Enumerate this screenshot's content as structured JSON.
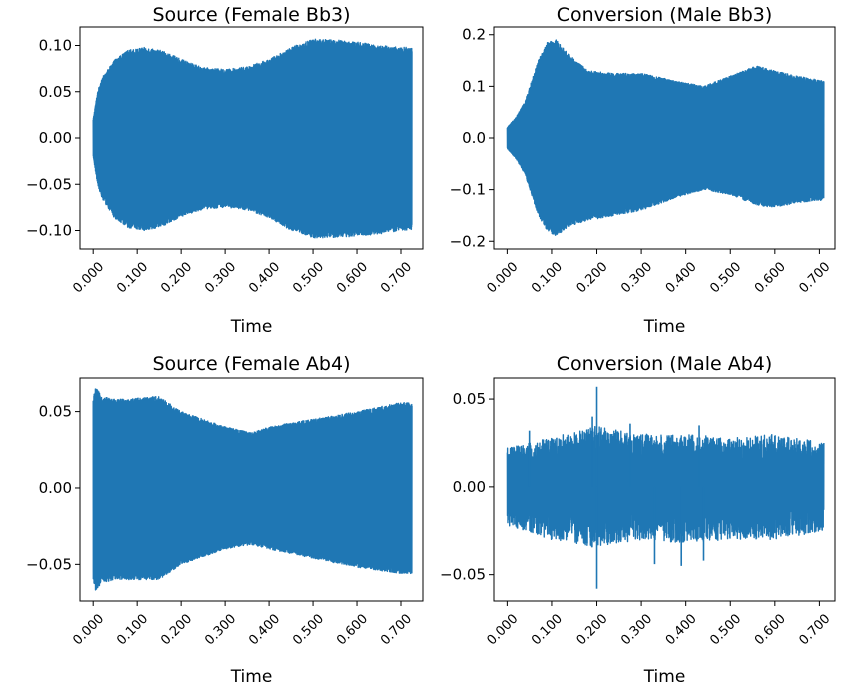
{
  "chart_data": [
    {
      "type": "line",
      "title": "Source (Female Bb3)",
      "xlabel": "Time",
      "ylabel": "",
      "xlim": [
        -0.03,
        0.75
      ],
      "ylim": [
        -0.12,
        0.12
      ],
      "xticks": [
        "0.000",
        "0.100",
        "0.200",
        "0.300",
        "0.400",
        "0.500",
        "0.600",
        "0.700"
      ],
      "xtick_values": [
        0.0,
        0.1,
        0.2,
        0.3,
        0.4,
        0.5,
        0.6,
        0.7
      ],
      "yticks": [
        "0.10",
        "0.05",
        "0.00",
        "−0.05",
        "−0.10"
      ],
      "ytick_values": [
        0.1,
        0.05,
        0.0,
        -0.05,
        -0.1
      ],
      "grid": false,
      "series": [
        {
          "color": "#1f77b4",
          "duration": 0.725,
          "envelope_upper": {
            "t": [
              0.0,
              0.01,
              0.02,
              0.05,
              0.08,
              0.12,
              0.16,
              0.2,
              0.25,
              0.3,
              0.35,
              0.4,
              0.45,
              0.5,
              0.55,
              0.6,
              0.65,
              0.7,
              0.725
            ],
            "v": [
              0.02,
              0.05,
              0.065,
              0.085,
              0.095,
              0.098,
              0.094,
              0.085,
              0.076,
              0.074,
              0.077,
              0.085,
              0.098,
              0.107,
              0.106,
              0.104,
              0.1,
              0.098,
              0.098
            ]
          },
          "envelope_lower": {
            "t": [
              0.0,
              0.01,
              0.02,
              0.05,
              0.08,
              0.12,
              0.16,
              0.2,
              0.25,
              0.3,
              0.35,
              0.4,
              0.45,
              0.5,
              0.55,
              0.6,
              0.65,
              0.7,
              0.725
            ],
            "v": [
              -0.02,
              -0.05,
              -0.065,
              -0.088,
              -0.097,
              -0.1,
              -0.095,
              -0.085,
              -0.077,
              -0.075,
              -0.078,
              -0.086,
              -0.1,
              -0.108,
              -0.108,
              -0.106,
              -0.104,
              -0.1,
              -0.1
            ]
          }
        }
      ]
    },
    {
      "type": "line",
      "title": "Conversion (Male Bb3)",
      "xlabel": "Time",
      "ylabel": "",
      "xlim": [
        -0.03,
        0.735
      ],
      "ylim": [
        -0.215,
        0.215
      ],
      "xticks": [
        "0.000",
        "0.100",
        "0.200",
        "0.300",
        "0.400",
        "0.500",
        "0.600",
        "0.700"
      ],
      "xtick_values": [
        0.0,
        0.1,
        0.2,
        0.3,
        0.4,
        0.5,
        0.6,
        0.7
      ],
      "yticks": [
        "0.2",
        "0.1",
        "0.0",
        "−0.1",
        "−0.2"
      ],
      "ytick_values": [
        0.2,
        0.1,
        0.0,
        -0.1,
        -0.2
      ],
      "grid": false,
      "series": [
        {
          "color": "#1f77b4",
          "duration": 0.71,
          "envelope_upper": {
            "t": [
              0.0,
              0.02,
              0.04,
              0.07,
              0.09,
              0.11,
              0.14,
              0.18,
              0.24,
              0.3,
              0.38,
              0.44,
              0.5,
              0.56,
              0.6,
              0.65,
              0.71
            ],
            "v": [
              0.02,
              0.04,
              0.07,
              0.15,
              0.185,
              0.19,
              0.16,
              0.13,
              0.125,
              0.125,
              0.11,
              0.1,
              0.12,
              0.14,
              0.13,
              0.12,
              0.11
            ]
          },
          "envelope_lower": {
            "t": [
              0.0,
              0.02,
              0.04,
              0.07,
              0.09,
              0.11,
              0.14,
              0.18,
              0.24,
              0.3,
              0.38,
              0.44,
              0.5,
              0.56,
              0.6,
              0.65,
              0.71
            ],
            "v": [
              -0.02,
              -0.04,
              -0.07,
              -0.15,
              -0.18,
              -0.19,
              -0.17,
              -0.16,
              -0.15,
              -0.14,
              -0.115,
              -0.1,
              -0.11,
              -0.13,
              -0.135,
              -0.125,
              -0.12
            ]
          }
        }
      ]
    },
    {
      "type": "line",
      "title": "Source (Female Ab4)",
      "xlabel": "Time",
      "ylabel": "",
      "xlim": [
        -0.03,
        0.75
      ],
      "ylim": [
        -0.074,
        0.072
      ],
      "xticks": [
        "0.000",
        "0.100",
        "0.200",
        "0.300",
        "0.400",
        "0.500",
        "0.600",
        "0.700"
      ],
      "xtick_values": [
        0.0,
        0.1,
        0.2,
        0.3,
        0.4,
        0.5,
        0.6,
        0.7
      ],
      "yticks": [
        "0.05",
        "0.00",
        "−0.05"
      ],
      "ytick_values": [
        0.05,
        0.0,
        -0.05
      ],
      "grid": false,
      "series": [
        {
          "color": "#1f77b4",
          "duration": 0.725,
          "envelope_upper": {
            "t": [
              0.0,
              0.005,
              0.02,
              0.05,
              0.1,
              0.15,
              0.2,
              0.25,
              0.3,
              0.36,
              0.4,
              0.5,
              0.6,
              0.7,
              0.725
            ],
            "v": [
              0.058,
              0.066,
              0.06,
              0.058,
              0.059,
              0.06,
              0.05,
              0.045,
              0.04,
              0.036,
              0.04,
              0.045,
              0.05,
              0.056,
              0.056
            ]
          },
          "envelope_lower": {
            "t": [
              0.0,
              0.005,
              0.02,
              0.05,
              0.1,
              0.15,
              0.2,
              0.25,
              0.3,
              0.36,
              0.4,
              0.5,
              0.6,
              0.7,
              0.725
            ],
            "v": [
              -0.06,
              -0.067,
              -0.062,
              -0.06,
              -0.06,
              -0.06,
              -0.05,
              -0.045,
              -0.04,
              -0.037,
              -0.04,
              -0.046,
              -0.052,
              -0.056,
              -0.056
            ]
          }
        }
      ]
    },
    {
      "type": "line",
      "title": "Conversion (Male Ab4)",
      "xlabel": "Time",
      "ylabel": "",
      "xlim": [
        -0.03,
        0.735
      ],
      "ylim": [
        -0.065,
        0.062
      ],
      "xticks": [
        "0.000",
        "0.100",
        "0.200",
        "0.300",
        "0.400",
        "0.500",
        "0.600",
        "0.700"
      ],
      "xtick_values": [
        0.0,
        0.1,
        0.2,
        0.3,
        0.4,
        0.5,
        0.6,
        0.7
      ],
      "yticks": [
        "0.05",
        "0.00",
        "−0.05"
      ],
      "ytick_values": [
        0.05,
        0.0,
        -0.05
      ],
      "grid": false,
      "series": [
        {
          "color": "#1f77b4",
          "duration": 0.71,
          "envelope_upper": {
            "t": [
              0.0,
              0.1,
              0.2,
              0.3,
              0.4,
              0.5,
              0.6,
              0.71
            ],
            "v": [
              0.022,
              0.028,
              0.035,
              0.03,
              0.03,
              0.028,
              0.03,
              0.025
            ]
          },
          "envelope_lower": {
            "t": [
              0.0,
              0.1,
              0.2,
              0.3,
              0.4,
              0.5,
              0.6,
              0.71
            ],
            "v": [
              -0.022,
              -0.03,
              -0.035,
              -0.03,
              -0.032,
              -0.03,
              -0.03,
              -0.025
            ]
          },
          "spikes": [
            {
              "t": 0.2,
              "v": 0.057
            },
            {
              "t": 0.2,
              "v": -0.058
            },
            {
              "t": 0.19,
              "v": 0.04
            },
            {
              "t": 0.275,
              "v": 0.036
            },
            {
              "t": 0.33,
              "v": -0.044
            },
            {
              "t": 0.43,
              "v": 0.035
            },
            {
              "t": 0.44,
              "v": -0.042
            },
            {
              "t": 0.39,
              "v": -0.045
            },
            {
              "t": 0.05,
              "v": 0.032
            }
          ]
        }
      ]
    }
  ]
}
